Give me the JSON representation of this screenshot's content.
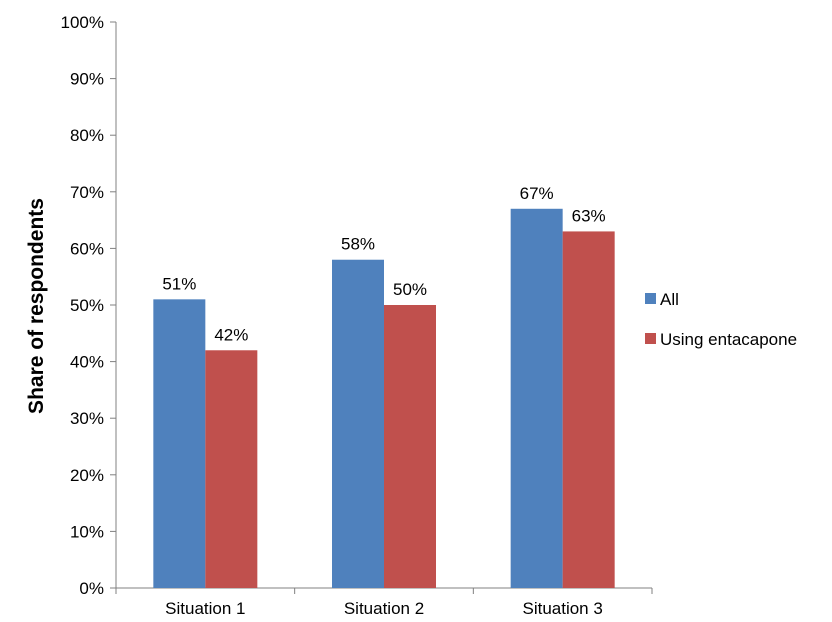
{
  "chart_data": {
    "type": "bar",
    "title": "",
    "xlabel": "",
    "ylabel": "Share of respondents",
    "ylim": [
      0,
      100
    ],
    "yticks": [
      "0%",
      "10%",
      "20%",
      "30%",
      "40%",
      "50%",
      "60%",
      "70%",
      "80%",
      "90%",
      "100%"
    ],
    "categories": [
      "Situation 1",
      "Situation 2",
      "Situation 3"
    ],
    "series": [
      {
        "name": "All",
        "values": [
          51,
          58,
          67
        ],
        "labels": [
          "51%",
          "58%",
          "67%"
        ],
        "color": "#4F81BD"
      },
      {
        "name": "Using entacapone",
        "values": [
          42,
          50,
          63
        ],
        "labels": [
          "42%",
          "50%",
          "63%"
        ],
        "color": "#C0504D"
      }
    ],
    "legend_position": "right",
    "grid": false
  }
}
